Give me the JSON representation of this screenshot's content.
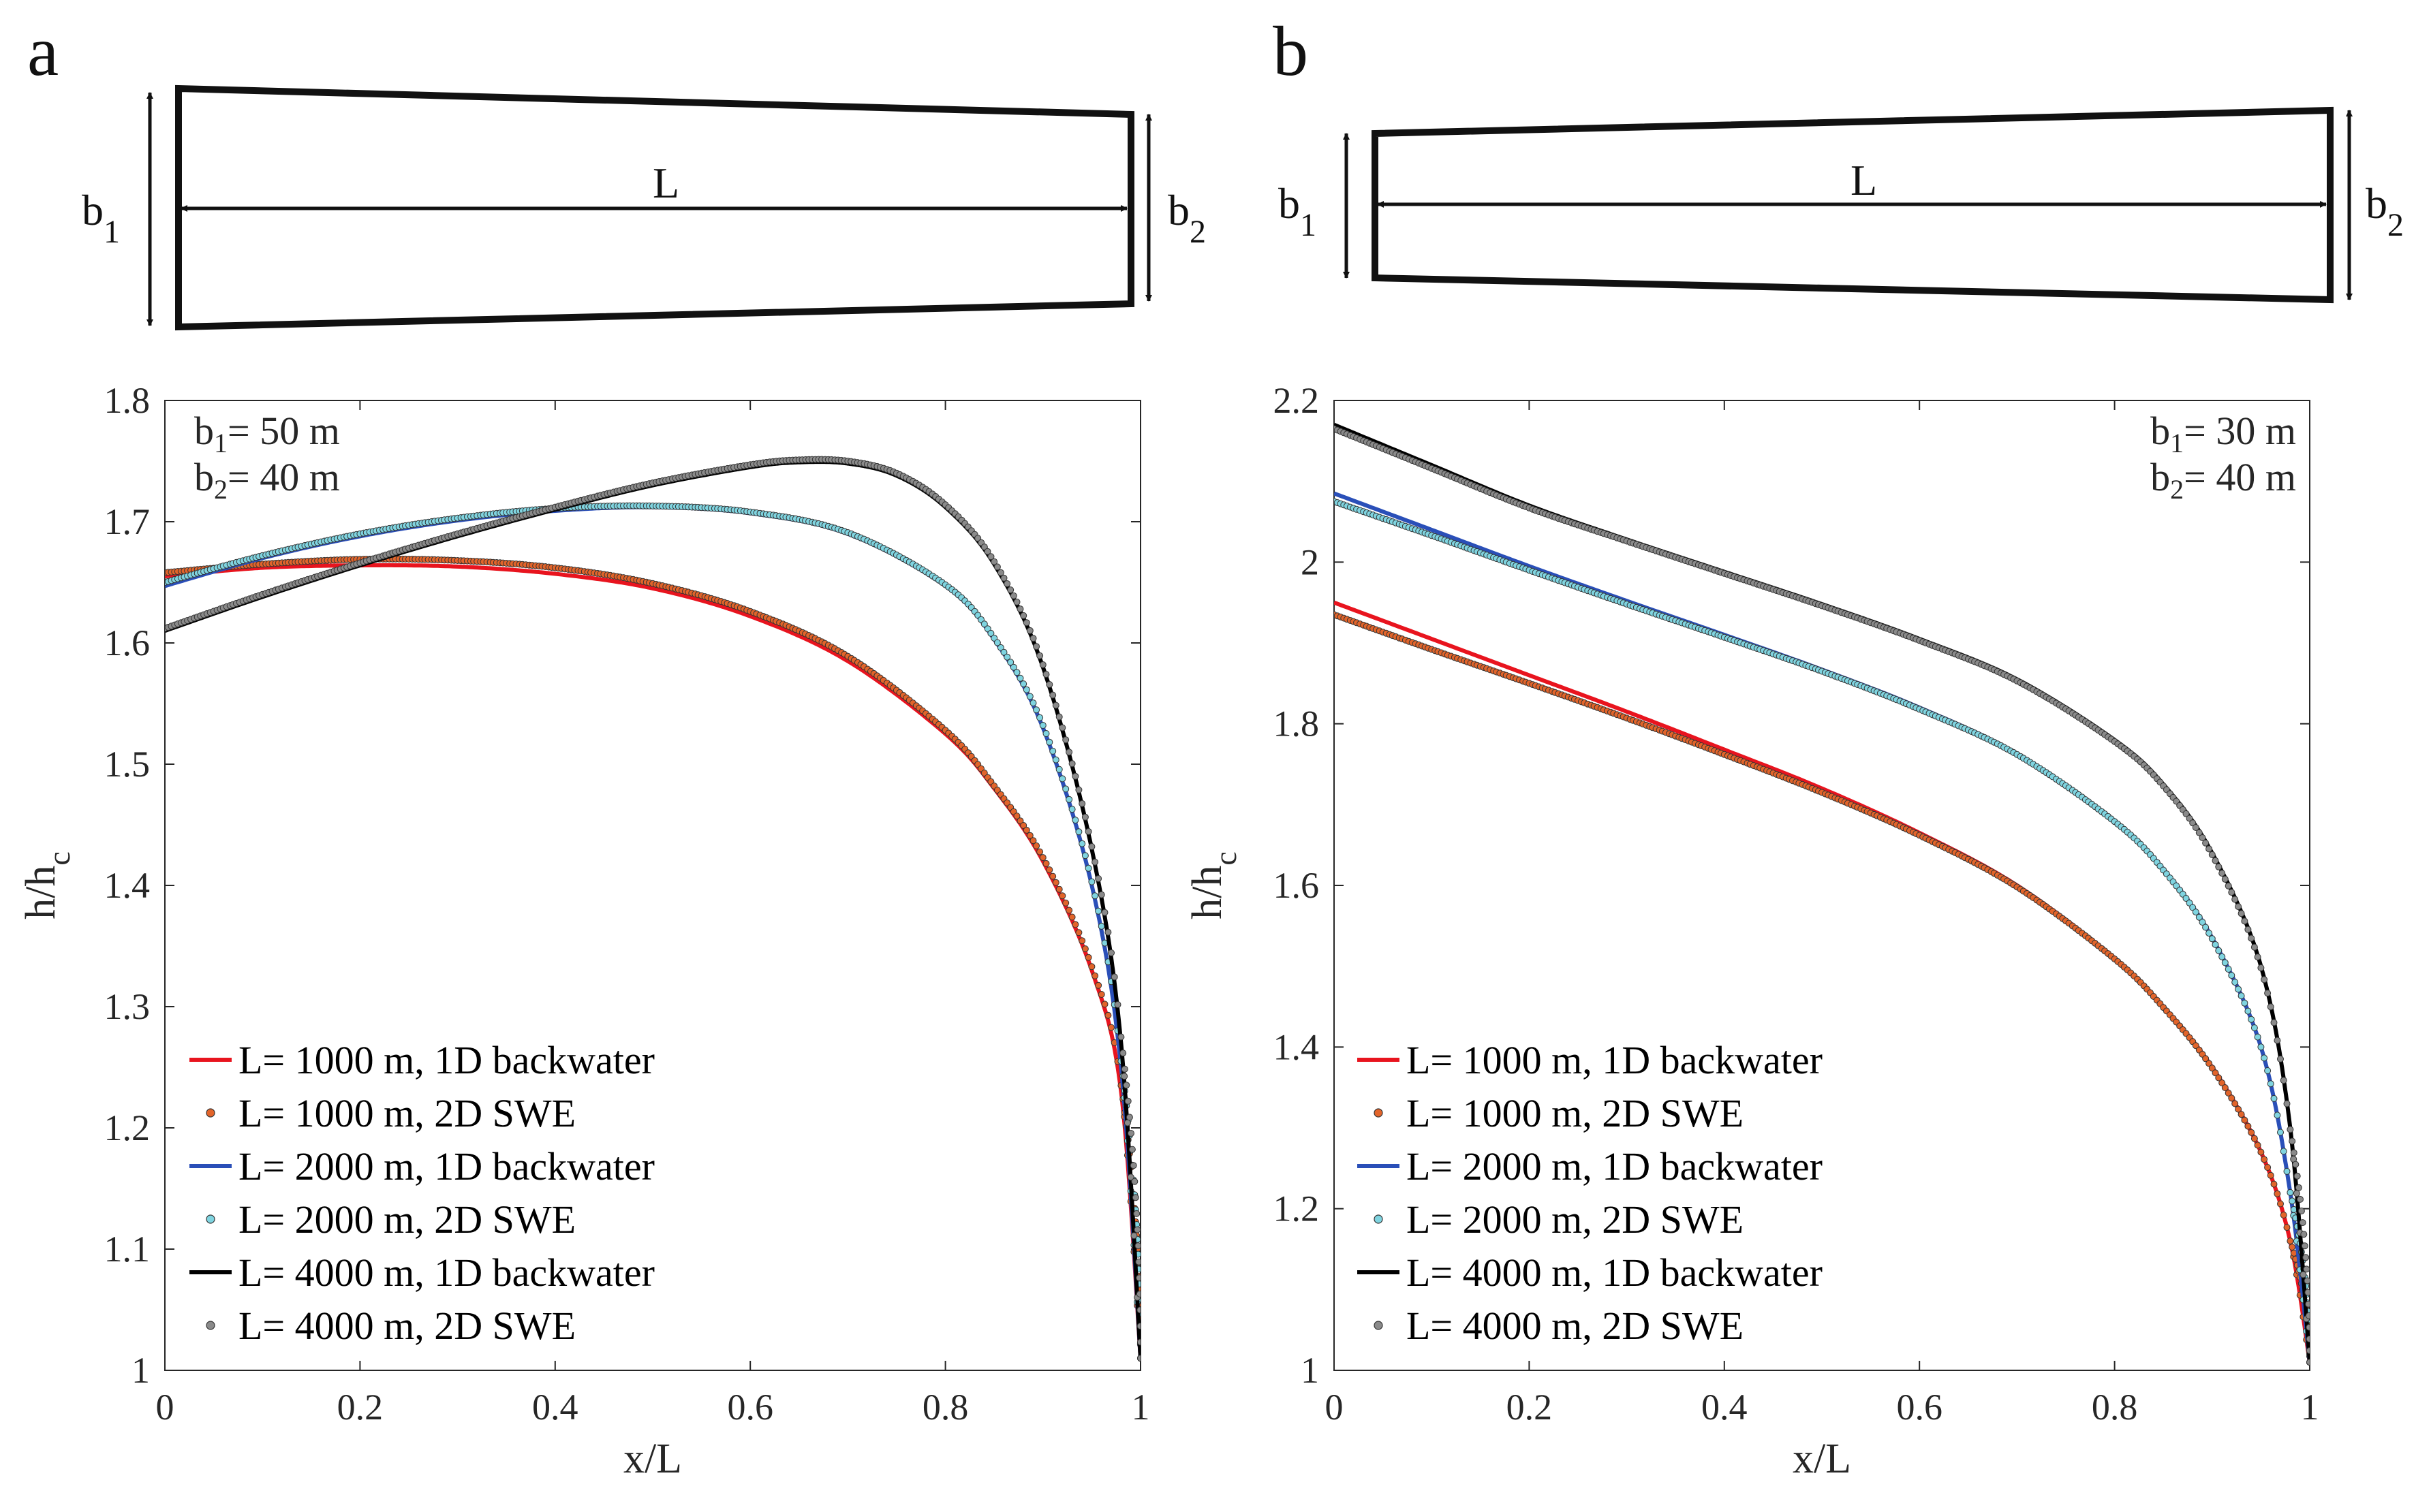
{
  "figure": {
    "panels": [
      {
        "letter": "a",
        "width_note": "b₁= 50 m",
        "b1": "b",
        "b1_sub": "1",
        "b2": "b",
        "b2_sub": "2",
        "length_label": "L"
      },
      {
        "letter": "b",
        "width_note": "b₁= 30 m",
        "b1": "b",
        "b1_sub": "1",
        "b2": "b",
        "b2_sub": "2",
        "length_label": "L"
      }
    ]
  },
  "colors": {
    "red": "#e8141e",
    "red_marker": "#e2642a",
    "blue": "#2a4fb8",
    "cyan_marker": "#7fd4e0",
    "black": "#000000",
    "gray_marker": "#8a8a8a"
  },
  "chart_data": [
    {
      "type": "line",
      "panel": "a",
      "title": "",
      "xlabel": "x/L",
      "ylabel": "h/h",
      "ylabel_sub": "c",
      "xlim": [
        0,
        1
      ],
      "ylim": [
        1,
        1.8
      ],
      "xticks": [
        "0",
        "0.2",
        "0.4",
        "0.6",
        "0.8",
        "1"
      ],
      "yticks": [
        "1",
        "1.1",
        "1.2",
        "1.3",
        "1.4",
        "1.5",
        "1.6",
        "1.7",
        "1.8"
      ],
      "annotation": {
        "line1_main": "b",
        "line1_sub": "1",
        "line1_rest": "= 50 m",
        "line2_main": "b",
        "line2_sub": "2",
        "line2_rest": "= 40 m"
      },
      "legend": [
        "L= 1000 m, 1D backwater",
        "L= 1000 m, 2D SWE",
        "L= 2000 m, 1D backwater",
        "L= 2000 m, 2D SWE",
        "L= 4000 m, 1D backwater",
        "L= 4000 m, 2D SWE"
      ],
      "series": [
        {
          "name": "L= 1000 m, 1D backwater",
          "style": "line",
          "color": "#e8141e",
          "x": [
            0,
            0.1,
            0.2,
            0.3,
            0.4,
            0.5,
            0.6,
            0.7,
            0.8,
            0.85,
            0.9,
            0.95,
            0.98,
            1.0
          ],
          "y": [
            1.655,
            1.662,
            1.664,
            1.663,
            1.657,
            1.645,
            1.622,
            1.585,
            1.525,
            1.48,
            1.42,
            1.33,
            1.23,
            1.01
          ]
        },
        {
          "name": "L= 1000 m, 2D SWE",
          "style": "marker",
          "color": "#e2642a",
          "x": [
            0,
            0.1,
            0.2,
            0.3,
            0.4,
            0.5,
            0.6,
            0.7,
            0.8,
            0.85,
            0.9,
            0.95,
            0.98,
            1.0
          ],
          "y": [
            1.658,
            1.665,
            1.669,
            1.668,
            1.662,
            1.649,
            1.626,
            1.589,
            1.528,
            1.482,
            1.423,
            1.333,
            1.235,
            1.01
          ]
        },
        {
          "name": "L= 2000 m, 1D backwater",
          "style": "line",
          "color": "#2a4fb8",
          "x": [
            0,
            0.1,
            0.2,
            0.3,
            0.4,
            0.5,
            0.6,
            0.7,
            0.8,
            0.85,
            0.9,
            0.95,
            0.98,
            1.0
          ],
          "y": [
            1.647,
            1.67,
            1.688,
            1.701,
            1.709,
            1.712,
            1.707,
            1.69,
            1.647,
            1.603,
            1.53,
            1.4,
            1.25,
            1.01
          ]
        },
        {
          "name": "L= 2000 m, 2D SWE",
          "style": "marker",
          "color": "#7fd4e0",
          "x": [
            0,
            0.1,
            0.2,
            0.3,
            0.4,
            0.5,
            0.6,
            0.7,
            0.8,
            0.85,
            0.9,
            0.95,
            0.98,
            1.0
          ],
          "y": [
            1.65,
            1.672,
            1.69,
            1.703,
            1.711,
            1.713,
            1.708,
            1.691,
            1.648,
            1.604,
            1.532,
            1.403,
            1.255,
            1.01
          ]
        },
        {
          "name": "L= 4000 m, 1D backwater",
          "style": "line",
          "color": "#000000",
          "x": [
            0,
            0.1,
            0.2,
            0.3,
            0.4,
            0.5,
            0.6,
            0.65,
            0.7,
            0.75,
            0.8,
            0.85,
            0.9,
            0.95,
            0.98,
            1.0
          ],
          "y": [
            1.61,
            1.638,
            1.664,
            1.688,
            1.71,
            1.73,
            1.745,
            1.749,
            1.748,
            1.738,
            1.712,
            1.665,
            1.58,
            1.43,
            1.27,
            1.01
          ]
        },
        {
          "name": "L= 4000 m, 2D SWE",
          "style": "marker",
          "color": "#8a8a8a",
          "x": [
            0,
            0.1,
            0.2,
            0.3,
            0.4,
            0.5,
            0.6,
            0.65,
            0.7,
            0.75,
            0.8,
            0.85,
            0.9,
            0.95,
            0.98,
            1.0
          ],
          "y": [
            1.612,
            1.64,
            1.666,
            1.69,
            1.712,
            1.732,
            1.747,
            1.751,
            1.75,
            1.74,
            1.714,
            1.667,
            1.582,
            1.432,
            1.275,
            1.01
          ]
        }
      ]
    },
    {
      "type": "line",
      "panel": "b",
      "title": "",
      "xlabel": "x/L",
      "ylabel": "h/h",
      "ylabel_sub": "c",
      "xlim": [
        0,
        1
      ],
      "ylim": [
        1,
        2.2
      ],
      "xticks": [
        "0",
        "0.2",
        "0.4",
        "0.6",
        "0.8",
        "1"
      ],
      "yticks": [
        "1",
        "1.2",
        "1.4",
        "1.6",
        "1.8",
        "2",
        "2.2"
      ],
      "annotation": {
        "line1_main": "b",
        "line1_sub": "1",
        "line1_rest": "= 30 m",
        "line2_main": "b",
        "line2_sub": "2",
        "line2_rest": "= 40 m"
      },
      "legend": [
        "L= 1000 m, 1D backwater",
        "L= 1000 m, 2D SWE",
        "L= 2000 m, 1D backwater",
        "L= 2000 m, 2D SWE",
        "L= 4000 m, 1D backwater",
        "L= 4000 m, 2D SWE"
      ],
      "series": [
        {
          "name": "L= 1000 m, 1D backwater",
          "style": "line",
          "color": "#e8141e",
          "x": [
            0,
            0.1,
            0.2,
            0.3,
            0.4,
            0.5,
            0.6,
            0.7,
            0.8,
            0.85,
            0.9,
            0.95,
            0.98,
            1.0
          ],
          "y": [
            1.95,
            1.905,
            1.86,
            1.815,
            1.768,
            1.72,
            1.665,
            1.6,
            1.51,
            1.45,
            1.375,
            1.27,
            1.16,
            1.01
          ]
        },
        {
          "name": "L= 1000 m, 2D SWE",
          "style": "marker",
          "color": "#e2642a",
          "x": [
            0,
            0.1,
            0.2,
            0.3,
            0.4,
            0.5,
            0.6,
            0.7,
            0.8,
            0.85,
            0.9,
            0.95,
            0.98,
            1.0
          ],
          "y": [
            1.935,
            1.892,
            1.85,
            1.807,
            1.762,
            1.715,
            1.662,
            1.598,
            1.509,
            1.449,
            1.374,
            1.27,
            1.16,
            1.01
          ]
        },
        {
          "name": "L= 2000 m, 1D backwater",
          "style": "line",
          "color": "#2a4fb8",
          "x": [
            0,
            0.1,
            0.2,
            0.3,
            0.4,
            0.5,
            0.6,
            0.7,
            0.8,
            0.85,
            0.9,
            0.95,
            0.98,
            1.0
          ],
          "y": [
            2.085,
            2.04,
            1.995,
            1.952,
            1.91,
            1.867,
            1.82,
            1.763,
            1.68,
            1.62,
            1.535,
            1.4,
            1.22,
            1.01
          ]
        },
        {
          "name": "L= 2000 m, 2D SWE",
          "style": "marker",
          "color": "#7fd4e0",
          "x": [
            0,
            0.1,
            0.2,
            0.3,
            0.4,
            0.5,
            0.6,
            0.7,
            0.8,
            0.85,
            0.9,
            0.95,
            0.98,
            1.0
          ],
          "y": [
            2.075,
            2.033,
            1.99,
            1.948,
            1.907,
            1.865,
            1.818,
            1.762,
            1.679,
            1.619,
            1.534,
            1.4,
            1.22,
            1.01
          ]
        },
        {
          "name": "L= 4000 m, 1D backwater",
          "style": "line",
          "color": "#000000",
          "x": [
            0,
            0.1,
            0.2,
            0.3,
            0.4,
            0.5,
            0.6,
            0.7,
            0.8,
            0.85,
            0.9,
            0.95,
            0.98,
            1.0
          ],
          "y": [
            2.17,
            2.12,
            2.07,
            2.028,
            1.988,
            1.948,
            1.905,
            1.855,
            1.78,
            1.725,
            1.64,
            1.5,
            1.3,
            1.01
          ]
        },
        {
          "name": "L= 4000 m, 2D SWE",
          "style": "marker",
          "color": "#8a8a8a",
          "x": [
            0,
            0.1,
            0.2,
            0.3,
            0.4,
            0.5,
            0.6,
            0.7,
            0.8,
            0.85,
            0.9,
            0.95,
            0.98,
            1.0
          ],
          "y": [
            2.165,
            2.116,
            2.067,
            2.026,
            1.986,
            1.946,
            1.903,
            1.853,
            1.778,
            1.723,
            1.638,
            1.498,
            1.298,
            1.01
          ]
        }
      ]
    }
  ]
}
